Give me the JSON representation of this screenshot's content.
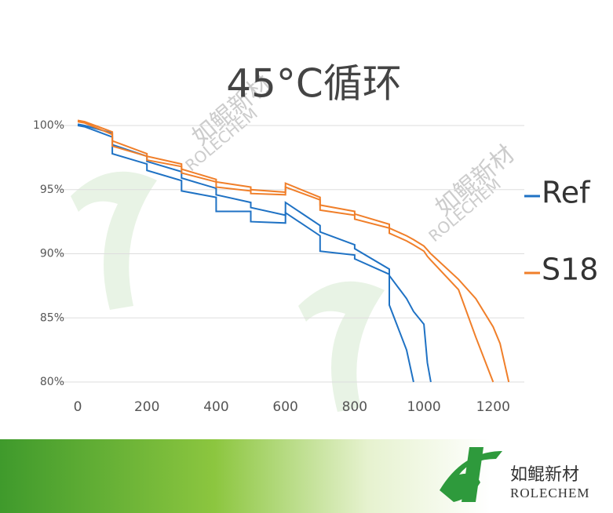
{
  "chart_data": {
    "type": "line",
    "title": "45°C循环",
    "x": [
      0,
      20,
      100,
      100,
      200,
      200,
      300,
      300,
      400,
      400,
      500,
      500,
      600,
      600,
      700,
      700,
      800,
      800,
      900,
      900,
      950,
      970,
      1000,
      1010,
      1020,
      1100,
      1150,
      1200,
      1220,
      1245
    ],
    "series": [
      {
        "name": "Ref",
        "color": "#1f72c4",
        "cells": [
          {
            "values": [
              100.1,
              100.0,
              99.4,
              98.5,
              97.6,
              97.2,
              96.4,
              95.9,
              95.1,
              94.6,
              94.0,
              93.6,
              93.0,
              94.0,
              92.2,
              91.7,
              90.7,
              90.4,
              88.8,
              88.3,
              86.5,
              85.5,
              84.5,
              81.5,
              80.0,
              null,
              null,
              null,
              null,
              null
            ]
          },
          {
            "values": [
              100.0,
              99.9,
              99.1,
              97.8,
              97.0,
              96.5,
              95.7,
              94.9,
              94.4,
              93.3,
              93.3,
              92.5,
              92.4,
              93.2,
              91.4,
              90.2,
              89.9,
              89.6,
              88.4,
              86.0,
              82.5,
              80.0,
              null,
              null,
              null,
              null,
              null,
              null,
              null,
              null
            ]
          }
        ]
      },
      {
        "name": "S18",
        "color": "#f07f2a",
        "cells": [
          {
            "values": [
              100.4,
              100.3,
              99.5,
              98.8,
              97.8,
              97.6,
              97.0,
              96.6,
              95.8,
              95.6,
              95.2,
              95.0,
              94.8,
              95.5,
              94.4,
              93.8,
              93.3,
              93.1,
              92.3,
              92.0,
              91.4,
              91.1,
              90.6,
              90.3,
              90.0,
              88.0,
              86.5,
              84.3,
              83.0,
              80.0
            ]
          },
          {
            "values": [
              100.3,
              100.2,
              99.3,
              98.4,
              97.6,
              97.3,
              96.8,
              96.3,
              95.6,
              95.2,
              94.9,
              94.7,
              94.6,
              95.2,
              94.2,
              93.4,
              93.0,
              92.7,
              92.0,
              91.6,
              91.0,
              90.7,
              90.2,
              89.8,
              89.5,
              87.2,
              83.5,
              80.0,
              null,
              null
            ]
          }
        ]
      }
    ],
    "xlim": [
      0,
      1290
    ],
    "xticks": [
      0,
      200,
      400,
      600,
      800,
      1000,
      1200
    ],
    "ylim": [
      80,
      100
    ],
    "yticks": [
      {
        "value": 80,
        "label": "80%"
      },
      {
        "value": 85,
        "label": "85%"
      },
      {
        "value": 90,
        "label": "90%"
      },
      {
        "value": 95,
        "label": "95%"
      },
      {
        "value": 100,
        "label": "100%"
      }
    ],
    "grid": true,
    "legend": "right"
  },
  "brand": {
    "name": "如鲲新材",
    "latin": "ROLECHEM"
  }
}
